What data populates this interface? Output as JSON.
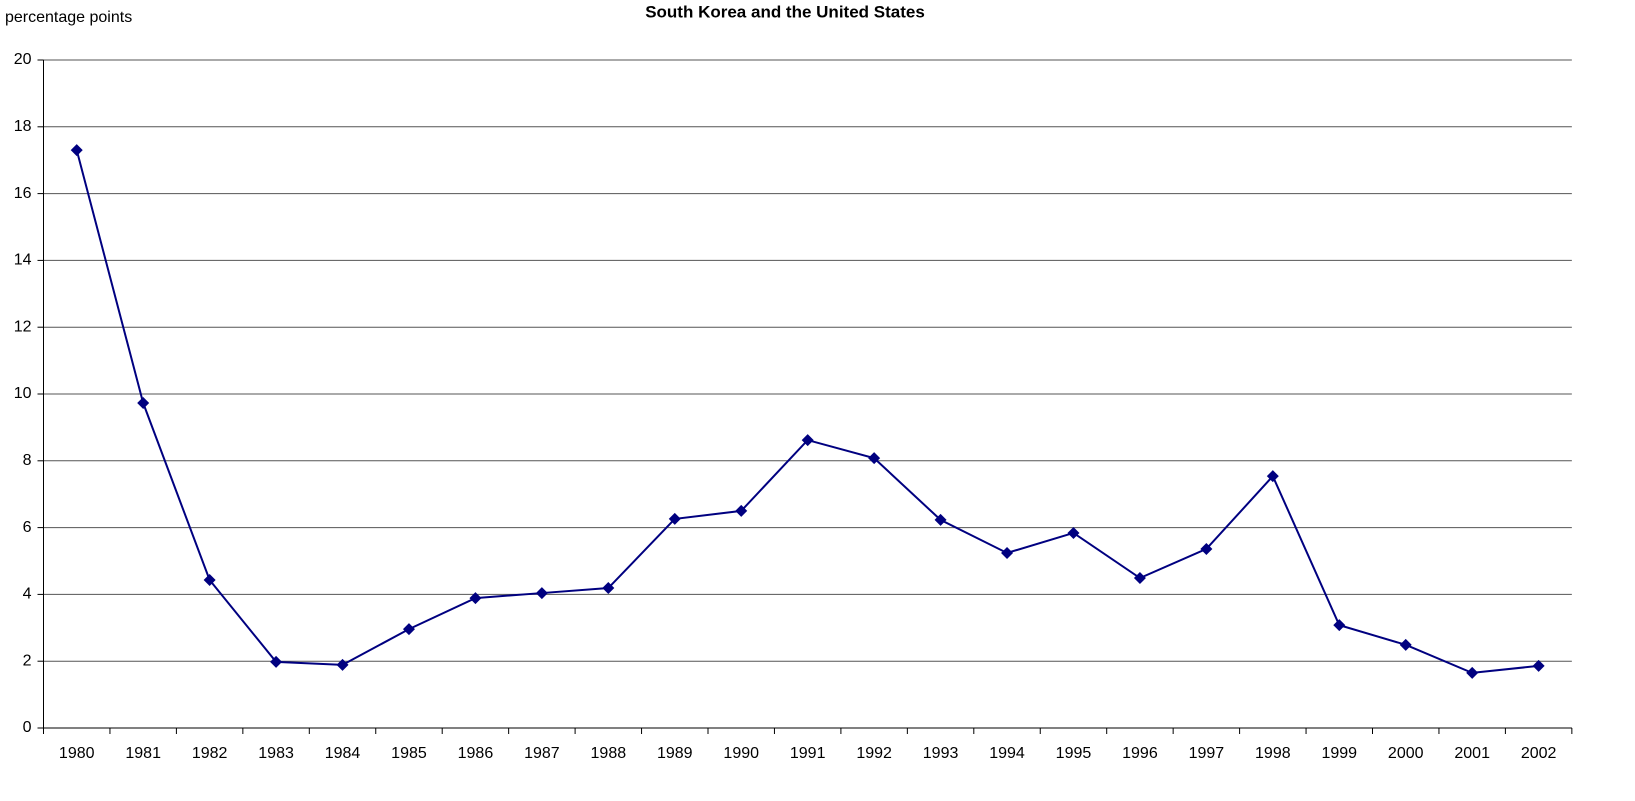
{
  "chart_data": {
    "type": "line",
    "title": "South Korea and the United States",
    "y_label": "percentage points",
    "categories": [
      "1980",
      "1981",
      "1982",
      "1983",
      "1984",
      "1985",
      "1986",
      "1987",
      "1988",
      "1989",
      "1990",
      "1991",
      "1992",
      "1993",
      "1994",
      "1995",
      "1996",
      "1997",
      "1998",
      "1999",
      "2000",
      "2001",
      "2002"
    ],
    "values": [
      17.3,
      9.73,
      4.43,
      1.98,
      1.89,
      2.96,
      3.89,
      4.04,
      4.19,
      6.26,
      6.5,
      8.62,
      8.08,
      6.23,
      5.24,
      5.84,
      4.49,
      5.36,
      7.54,
      3.08,
      2.49,
      1.65,
      1.86
    ],
    "color": "#000080",
    "ylim": [
      0,
      20
    ],
    "yticks": [
      0,
      2,
      4,
      6,
      8,
      10,
      12,
      14,
      16,
      18,
      20
    ],
    "grid": true
  }
}
